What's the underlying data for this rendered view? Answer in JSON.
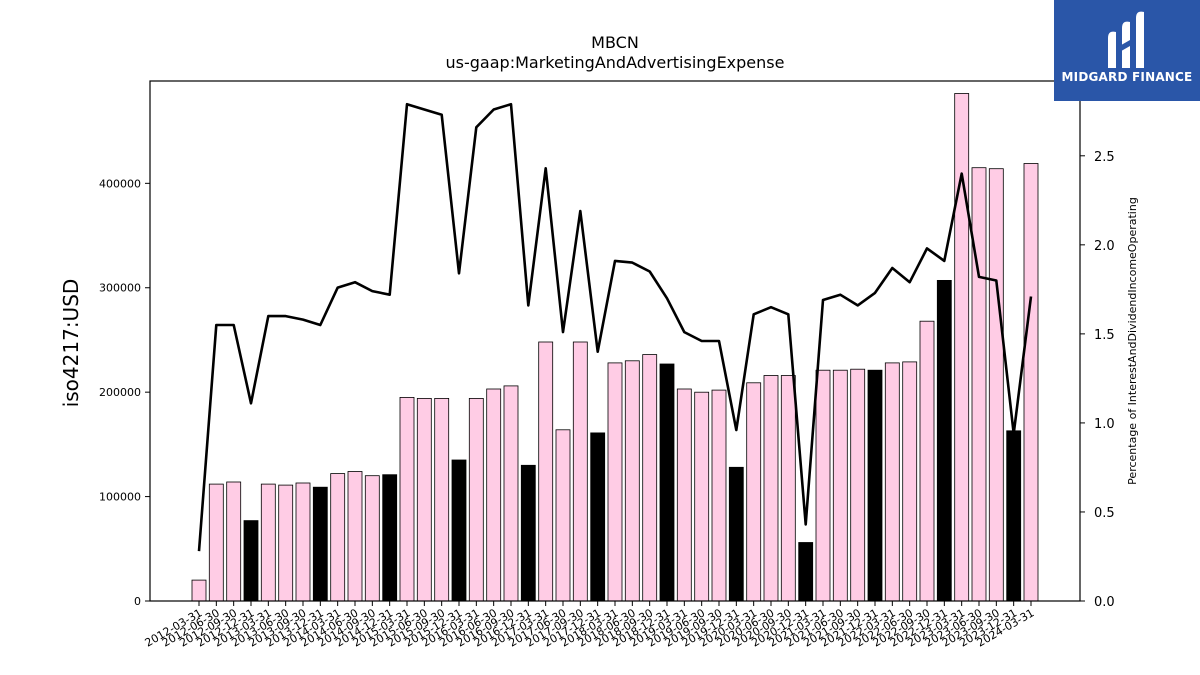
{
  "header": {
    "title": "MBCN",
    "subtitle": "us-gaap:MarketingAndAdvertisingExpense"
  },
  "logo": {
    "text": "MIDGARD FINANCE",
    "bg_color": "#2a56a8"
  },
  "chart_data": {
    "type": "bar",
    "title": "MBCN",
    "subtitle": "us-gaap:MarketingAndAdvertisingExpense",
    "ylabel": "iso4217:USD",
    "y2label": "Percentage of InterestAndDividendIncomeOperating",
    "ylim": [
      0,
      498000
    ],
    "y2lim": [
      0,
      2.92
    ],
    "yticks": [
      0,
      100000,
      200000,
      300000,
      400000
    ],
    "y2ticks": [
      "0.0",
      "0.5",
      "1.0",
      "1.5",
      "2.0",
      "2.5"
    ],
    "grid": false,
    "categories": [
      "2012-03-31",
      "2012-06-30",
      "2012-09-30",
      "2012-12-31",
      "2013-03-31",
      "2013-06-30",
      "2013-09-30",
      "2013-12-31",
      "2014-03-31",
      "2014-06-30",
      "2014-09-30",
      "2014-12-31",
      "2015-03-31",
      "2015-06-30",
      "2015-09-30",
      "2015-12-31",
      "2016-03-31",
      "2016-06-30",
      "2016-09-30",
      "2016-12-31",
      "2017-03-31",
      "2017-06-30",
      "2017-09-30",
      "2017-12-31",
      "2018-03-31",
      "2018-06-30",
      "2018-09-30",
      "2018-12-31",
      "2019-03-31",
      "2019-06-30",
      "2019-09-30",
      "2019-12-31",
      "2020-03-31",
      "2020-06-30",
      "2020-09-30",
      "2020-12-31",
      "2021-03-31",
      "2021-06-30",
      "2021-09-30",
      "2021-12-31",
      "2022-03-31",
      "2022-06-30",
      "2022-09-30",
      "2022-12-31",
      "2023-03-31",
      "2023-06-30",
      "2023-09-30",
      "2023-12-31",
      "2024-03-31"
    ],
    "x_tick_labels": [
      "2012-03-31",
      "2012-06-30",
      "2012-09-30",
      "2012-12-31",
      "2013-03-31",
      "2013-06-30",
      "2013-09-30",
      "2013-12-31",
      "2014-03-31",
      "2014-06-30",
      "2014-09-30",
      "2014-12-31",
      "2015-03-31",
      "2015-06-30",
      "2015-09-30",
      "2015-12-31",
      "2016-03-31",
      "2016-06-30",
      "2016-09-30",
      "2016-12-31",
      "2017-03-31",
      "2017-06-30",
      "2017-09-30",
      "2017-12-31",
      "2018-03-31",
      "2018-06-30",
      "2018-09-30",
      "2018-12-31",
      "2019-03-31",
      "2019-06-30",
      "2019-09-30",
      "2019-12-31",
      "2020-03-31",
      "2020-06-30",
      "2020-09-30",
      "2020-12-31",
      "2021-03-31",
      "2021-06-30",
      "2021-09-30",
      "2021-12-31",
      "2022-03-31",
      "2022-06-30",
      "2022-09-30",
      "2022-12-31",
      "2023-03-31",
      "2023-06-30",
      "2023-09-30",
      "2023-12-31",
      "2024-03-31"
    ],
    "series": [
      {
        "type": "bar",
        "axis": "left",
        "values": [
          20000,
          112000,
          114000,
          77000,
          112000,
          111000,
          113000,
          109000,
          122000,
          124000,
          120000,
          121000,
          195000,
          194000,
          194000,
          135000,
          194000,
          203000,
          206000,
          130000,
          248000,
          164000,
          248000,
          161000,
          228000,
          230000,
          236000,
          227000,
          203000,
          200000,
          202000,
          128000,
          209000,
          216000,
          216000,
          56000,
          221000,
          221000,
          222000,
          221000,
          228000,
          229000,
          268000,
          307000,
          486000,
          415000,
          414000,
          163000,
          419000
        ],
        "highlight": [
          false,
          false,
          false,
          true,
          false,
          false,
          false,
          true,
          false,
          false,
          false,
          true,
          false,
          false,
          false,
          true,
          false,
          false,
          false,
          true,
          false,
          false,
          false,
          true,
          false,
          false,
          false,
          true,
          false,
          false,
          false,
          true,
          false,
          false,
          false,
          true,
          false,
          false,
          false,
          true,
          false,
          false,
          false,
          true,
          false,
          false,
          false,
          true,
          false
        ],
        "color": "#ffcce5",
        "highlight_color": "#000000",
        "edge_color": "#000000"
      },
      {
        "type": "line",
        "axis": "right",
        "values": [
          0.28,
          1.55,
          1.55,
          1.11,
          1.6,
          1.6,
          1.58,
          1.55,
          1.76,
          1.79,
          1.74,
          1.72,
          2.79,
          2.76,
          2.73,
          1.84,
          2.66,
          2.76,
          2.79,
          1.66,
          2.43,
          1.51,
          2.19,
          1.4,
          1.91,
          1.9,
          1.85,
          1.7,
          1.51,
          1.46,
          1.46,
          0.96,
          1.61,
          1.65,
          1.61,
          0.43,
          1.69,
          1.72,
          1.66,
          1.73,
          1.87,
          1.79,
          1.98,
          1.91,
          2.4,
          1.82,
          1.8,
          0.94,
          1.71
        ],
        "color": "#000000"
      }
    ]
  }
}
